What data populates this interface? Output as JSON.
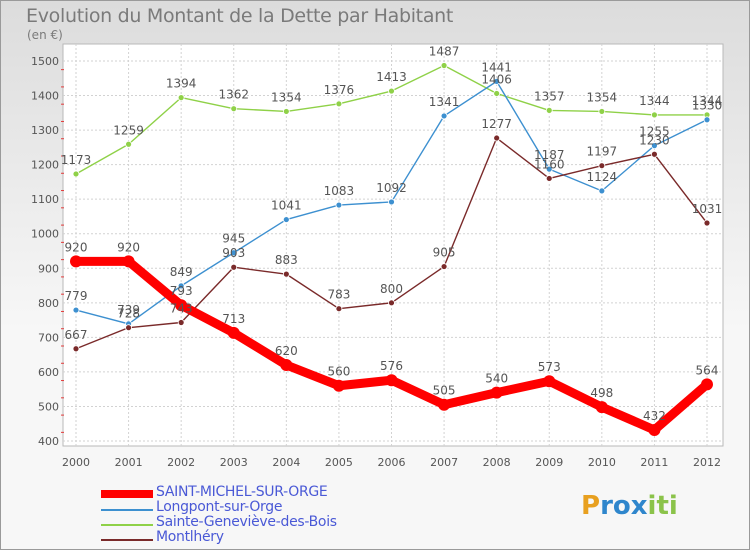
{
  "title": "Evolution du Montant de la Dette par Habitant",
  "unit": "(en €)",
  "logo": {
    "text": "Proxiti",
    "letters": [
      "P",
      "r",
      "o",
      "x",
      "i",
      "t",
      "i"
    ],
    "colors": [
      "#e8a020",
      "#2f86cc",
      "#2f86cc",
      "#2f86cc",
      "#8bc34a",
      "#8bc34a",
      "#8bc34a"
    ]
  },
  "chart_data": {
    "type": "line",
    "title": "Evolution du Montant de la Dette par Habitant",
    "ylabel": "(en €)",
    "xlabel": "",
    "categories": [
      "2000",
      "2001",
      "2002",
      "2003",
      "2004",
      "2005",
      "2006",
      "2007",
      "2008",
      "2009",
      "2010",
      "2011",
      "2012"
    ],
    "ylim": [
      400,
      1500
    ],
    "yticks": [
      "400",
      "500",
      "600",
      "700",
      "800",
      "900",
      "1000",
      "1100",
      "1200",
      "1300",
      "1400",
      "1500"
    ],
    "grid": true,
    "legend_position": "bottom-left",
    "series": [
      {
        "name": "SAINT-MICHEL-SUR-ORGE",
        "color": "#ff0000",
        "values": [
          920,
          920,
          793,
          713,
          620,
          560,
          576,
          505,
          540,
          573,
          498,
          432,
          564
        ],
        "labels": [
          "920",
          "920",
          "793",
          "713",
          "620",
          "560",
          "576",
          "505",
          "540",
          "573",
          "498",
          "432",
          "564"
        ]
      },
      {
        "name": "Longpont-sur-Orge",
        "color": "#3d90d0",
        "values": [
          779,
          739,
          849,
          945,
          1041,
          1083,
          1092,
          1341,
          1441,
          1187,
          1124,
          1255,
          1330
        ],
        "labels": [
          "779",
          "739",
          "849",
          "945",
          "1041",
          "1083",
          "1092",
          "1341",
          "1441",
          "1187",
          "1124",
          "1255",
          "1330"
        ]
      },
      {
        "name": "Sainte-Geneviève-des-Bois",
        "color": "#8fd148",
        "values": [
          1173,
          1259,
          1394,
          1362,
          1354,
          1376,
          1413,
          1487,
          1406,
          1357,
          1354,
          1344,
          1344
        ],
        "labels": [
          "1173",
          "1259",
          "1394",
          "1362",
          "1354",
          "1376",
          "1413",
          "1487",
          "1406",
          "1357",
          "1354",
          "1344",
          "1344"
        ]
      },
      {
        "name": "Montlhéry",
        "color": "#7a2a2a",
        "values": [
          667,
          728,
          743,
          903,
          883,
          783,
          800,
          905,
          1277,
          1160,
          1197,
          1230,
          1031
        ],
        "labels": [
          "667",
          "728",
          "743",
          "903",
          "883",
          "783",
          "800",
          "905",
          "1277",
          "1160",
          "1197",
          "1230",
          "1031"
        ]
      }
    ]
  }
}
